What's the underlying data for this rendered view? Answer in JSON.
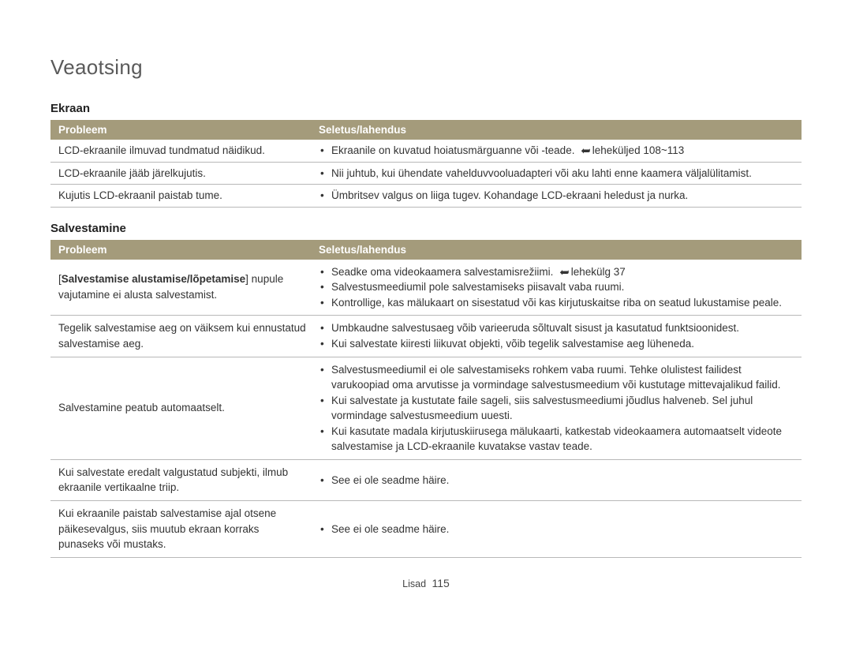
{
  "page_title": "Veaotsing",
  "footer_label": "Lisad",
  "page_number": "115",
  "section1": {
    "title": "Ekraan",
    "header_problem": "Probleem",
    "header_solution": "Seletus/lahendus",
    "rows": [
      {
        "problem": "LCD-ekraanile ilmuvad tundmatud näidikud.",
        "items": [
          {
            "prefix": "Ekraanile on kuvatud hoiatusmärguanne või -teade. ",
            "arrow": true,
            "suffix": "leheküljed 108~113"
          }
        ]
      },
      {
        "problem": "LCD-ekraanile jääb järelkujutis.",
        "items": [
          {
            "prefix": "Nii juhtub, kui ühendate vahelduvvooluadapteri või aku lahti enne kaamera väljalülitamist."
          }
        ]
      },
      {
        "problem": "Kujutis LCD-ekraanil paistab tume.",
        "items": [
          {
            "prefix": "Ümbritsev valgus on liiga tugev. Kohandage LCD-ekraani heledust ja nurka."
          }
        ]
      }
    ]
  },
  "section2": {
    "title": "Salvestamine",
    "header_problem": "Probleem",
    "header_solution": "Seletus/lahendus",
    "rows": [
      {
        "problem_bold": "Salvestamise alustamise/lõpetamise",
        "problem_rest": " nupule vajutamine ei alusta salvestamist.",
        "items": [
          {
            "prefix": "Seadke oma videokaamera salvestamisrežiimi. ",
            "arrow": true,
            "suffix": "lehekülg 37"
          },
          {
            "prefix": "Salvestusmeediumil pole salvestamiseks piisavalt vaba ruumi."
          },
          {
            "prefix": "Kontrollige, kas mälukaart on sisestatud või kas kirjutuskaitse riba on seatud lukustamise peale."
          }
        ]
      },
      {
        "problem": "Tegelik salvestamise aeg on väiksem kui ennustatud salvestamise aeg.",
        "items": [
          {
            "prefix": "Umbkaudne salvestusaeg võib varieeruda sõltuvalt sisust ja kasutatud funktsioonidest."
          },
          {
            "prefix": "Kui salvestate kiiresti liikuvat objekti, võib tegelik salvestamise aeg lüheneda."
          }
        ]
      },
      {
        "problem": "Salvestamine peatub automaatselt.",
        "items": [
          {
            "prefix": "Salvestusmeediumil ei ole salvestamiseks rohkem vaba ruumi. Tehke olulistest failidest varukoopiad oma arvutisse ja vormindage salvestusmeedium või kustutage mittevajalikud failid."
          },
          {
            "prefix": "Kui salvestate ja kustutate faile sageli, siis salvestusmeediumi jõudlus halveneb. Sel juhul vormindage salvestusmeedium uuesti."
          },
          {
            "prefix": "Kui kasutate madala kirjutuskiirusega mälukaarti, katkestab videokaamera automaatselt videote salvestamise ja LCD-ekraanile kuvatakse vastav teade."
          }
        ]
      },
      {
        "problem": "Kui salvestate eredalt valgustatud subjekti, ilmub ekraanile vertikaalne triip.",
        "items": [
          {
            "prefix": "See ei ole seadme häire."
          }
        ]
      },
      {
        "problem": "Kui ekraanile paistab salvestamise ajal otsene päikesevalgus, siis muutub ekraan korraks punaseks või mustaks.",
        "items": [
          {
            "prefix": "See ei ole seadme häire."
          }
        ]
      }
    ]
  }
}
